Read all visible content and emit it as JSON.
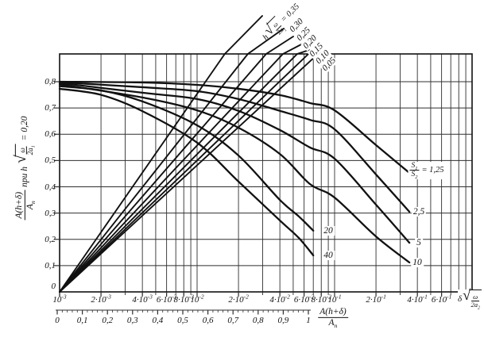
{
  "figure": {
    "background": "#ffffff",
    "ink": "#111111",
    "grid_color": "#2f2f2f"
  },
  "labels": {
    "radical_sign": "√",
    "y_axis_title": {
      "num": "A(h+δ)",
      "den": "A_n",
      "mid": "при h",
      "rad_num": "ω",
      "rad_den": "2a_1",
      "eq": "= 0,20"
    },
    "fan_title": {
      "pre": "h",
      "rad_num": "ω",
      "rad_den": "2a_1",
      "eq": "= 0,35"
    },
    "x_log_title": {
      "pre": "δ",
      "rad_num": "ω",
      "rad_den": "2a_2"
    },
    "x_lin_title": {
      "num": "A(h+δ)",
      "den": "A_n"
    },
    "s_ratio_title": {
      "num": "S_1",
      "den": "S_2",
      "eq": "= 1,25"
    }
  },
  "chart_data": {
    "type": "line",
    "title": "",
    "x_axis": {
      "scale": "log",
      "label": "δ·sqrt(ω/2a_2)",
      "min": 0.001,
      "max": 1,
      "ticks": [
        {
          "v": 0.001,
          "t": "10^-3"
        },
        {
          "v": 0.002,
          "t": "2·10^-3"
        },
        {
          "v": 0.004,
          "t": "4·10^-3"
        },
        {
          "v": 0.006,
          "t": "6·10^-3"
        },
        {
          "v": 0.008,
          "t": "8·10^-3"
        },
        {
          "v": 0.01,
          "t": "10^-2"
        },
        {
          "v": 0.02,
          "t": "2·10^-2"
        },
        {
          "v": 0.04,
          "t": "4·10^-2"
        },
        {
          "v": 0.06,
          "t": "6·10^-2"
        },
        {
          "v": 0.08,
          "t": "8·10^-2"
        },
        {
          "v": 0.1,
          "t": "10^-1"
        },
        {
          "v": 0.2,
          "t": "2·10^-1"
        },
        {
          "v": 0.4,
          "t": "4·10^-1"
        },
        {
          "v": 0.6,
          "t": "6·10^-1"
        }
      ],
      "gridlines": [
        0.002,
        0.003,
        0.004,
        0.005,
        0.006,
        0.007,
        0.008,
        0.009,
        0.01,
        0.02,
        0.03,
        0.04,
        0.05,
        0.06,
        0.07,
        0.08,
        0.09,
        0.1,
        0.2,
        0.3,
        0.4,
        0.5,
        0.6,
        0.7,
        0.8,
        0.9
      ]
    },
    "x_axis_secondary": {
      "scale": "linear",
      "label": "A(h+δ)/A_n",
      "min": 0,
      "max": 1,
      "minor_step": 0.02,
      "ticks": [
        {
          "v": 0,
          "t": "0"
        },
        {
          "v": 0.1,
          "t": "0,1"
        },
        {
          "v": 0.2,
          "t": "0,2"
        },
        {
          "v": 0.3,
          "t": "0,3"
        },
        {
          "v": 0.4,
          "t": "0,4"
        },
        {
          "v": 0.5,
          "t": "0,5"
        },
        {
          "v": 0.6,
          "t": "0,6"
        },
        {
          "v": 0.7,
          "t": "0,7"
        },
        {
          "v": 0.8,
          "t": "0,8"
        },
        {
          "v": 0.9,
          "t": "0,9"
        },
        {
          "v": 1,
          "t": "1"
        }
      ]
    },
    "y_axis": {
      "scale": "linear",
      "label": "A(h+δ)/A_n при h·sqrt(ω/2a_1) = 0,20",
      "min": 0,
      "max": 0.9,
      "ticks": [
        {
          "v": 0,
          "t": "0"
        },
        {
          "v": 0.1,
          "t": "0,1"
        },
        {
          "v": 0.2,
          "t": "0,2"
        },
        {
          "v": 0.3,
          "t": "0,3"
        },
        {
          "v": 0.4,
          "t": "0,4"
        },
        {
          "v": 0.5,
          "t": "0,5"
        },
        {
          "v": 0.6,
          "t": "0,6"
        },
        {
          "v": 0.7,
          "t": "0,7"
        },
        {
          "v": 0.8,
          "t": "0,8"
        }
      ],
      "gridlines": [
        0.1,
        0.2,
        0.3,
        0.4,
        0.5,
        0.6,
        0.7,
        0.8
      ]
    },
    "series": [
      {
        "name": "S1/S2 = 1,25",
        "s_ratio": 1.25,
        "end_label": "1,25",
        "x": [
          0.001,
          0.004,
          0.01,
          0.02,
          0.04,
          0.066,
          0.1,
          0.2,
          0.35
        ],
        "y": [
          0.8,
          0.797,
          0.788,
          0.773,
          0.749,
          0.719,
          0.691,
          0.559,
          0.453
        ]
      },
      {
        "name": "S1/S2 = 2,5",
        "s_ratio": 2.5,
        "end_label": "2,5",
        "x": [
          0.001,
          0.004,
          0.01,
          0.02,
          0.04,
          0.066,
          0.1,
          0.2,
          0.35
        ],
        "y": [
          0.798,
          0.779,
          0.764,
          0.734,
          0.689,
          0.655,
          0.619,
          0.447,
          0.305
        ]
      },
      {
        "name": "S1/S2 = 5",
        "s_ratio": 5,
        "end_label": "5",
        "x": [
          0.001,
          0.004,
          0.01,
          0.02,
          0.04,
          0.066,
          0.1,
          0.2,
          0.35
        ],
        "y": [
          0.795,
          0.758,
          0.734,
          0.689,
          0.616,
          0.55,
          0.507,
          0.332,
          0.187
        ]
      },
      {
        "name": "S1/S2 = 10",
        "s_ratio": 10,
        "end_label": "10",
        "x": [
          0.001,
          0.004,
          0.01,
          0.02,
          0.04,
          0.066,
          0.1,
          0.2,
          0.35
        ],
        "y": [
          0.79,
          0.74,
          0.691,
          0.625,
          0.525,
          0.411,
          0.359,
          0.211,
          0.112
        ]
      },
      {
        "name": "S1/S2 = 20",
        "s_ratio": 20,
        "end_label": "20",
        "x": [
          0.001,
          0.002,
          0.004,
          0.01,
          0.02,
          0.04,
          0.055,
          0.07
        ],
        "y": [
          0.783,
          0.767,
          0.725,
          0.634,
          0.519,
          0.35,
          0.287,
          0.233
        ]
      },
      {
        "name": "S1/S2 = 40",
        "s_ratio": 40,
        "end_label": "40",
        "x": [
          0.001,
          0.002,
          0.004,
          0.01,
          0.02,
          0.04,
          0.055,
          0.07
        ],
        "y": [
          0.773,
          0.75,
          0.688,
          0.568,
          0.42,
          0.272,
          0.205,
          0.139
        ]
      }
    ],
    "fan_lines": [
      {
        "label": "h√(ω/2a_1) = 0,35",
        "h": 0.35,
        "x_start": 0.001,
        "y_start": 0,
        "x_top": 0.0159
      },
      {
        "label": "0,30",
        "h": 0.3,
        "x_start": 0.001,
        "y_start": 0,
        "x_top": 0.0234
      },
      {
        "label": "0,25",
        "h": 0.25,
        "x_start": 0.001,
        "y_start": 0,
        "x_top": 0.0318
      },
      {
        "label": "0,20",
        "h": 0.2,
        "x_start": 0.001,
        "y_start": 0,
        "x_top": 0.0421
      },
      {
        "label": "0,15",
        "h": 0.15,
        "x_start": 0.001,
        "y_start": 0,
        "x_top": 0.0535
      },
      {
        "label": "0,10",
        "h": 0.1,
        "x_start": 0.001,
        "y_start": 0,
        "x_top": 0.0645
      },
      {
        "label": "0,05",
        "h": 0.05,
        "x_start": 0.001,
        "y_start": 0,
        "x_top": 0.0757
      }
    ]
  }
}
